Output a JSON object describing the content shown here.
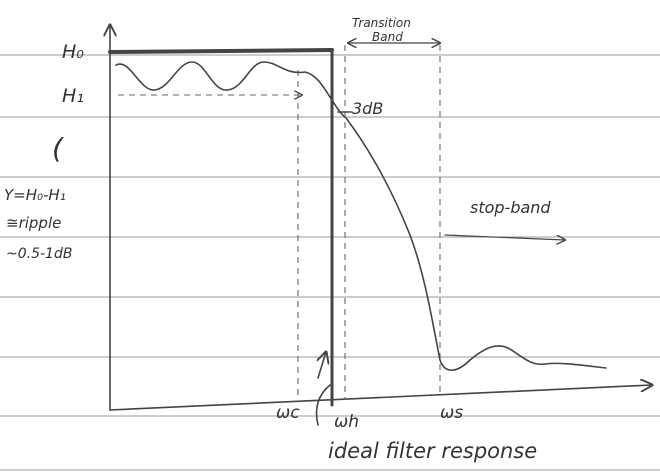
{
  "labels": {
    "transition": "Transition",
    "band": "Band",
    "h0": "H₀",
    "h1": "H₁",
    "db3": "3dB",
    "paren": "(",
    "gamma": "Y=H₀-H₁",
    "ripple": "≅ripple",
    "range": "~0.5-1dB",
    "stopband": "stop-band",
    "wc": "ωc",
    "wh": "ωh",
    "ws": "ωs",
    "ideal": "ideal filter response"
  }
}
